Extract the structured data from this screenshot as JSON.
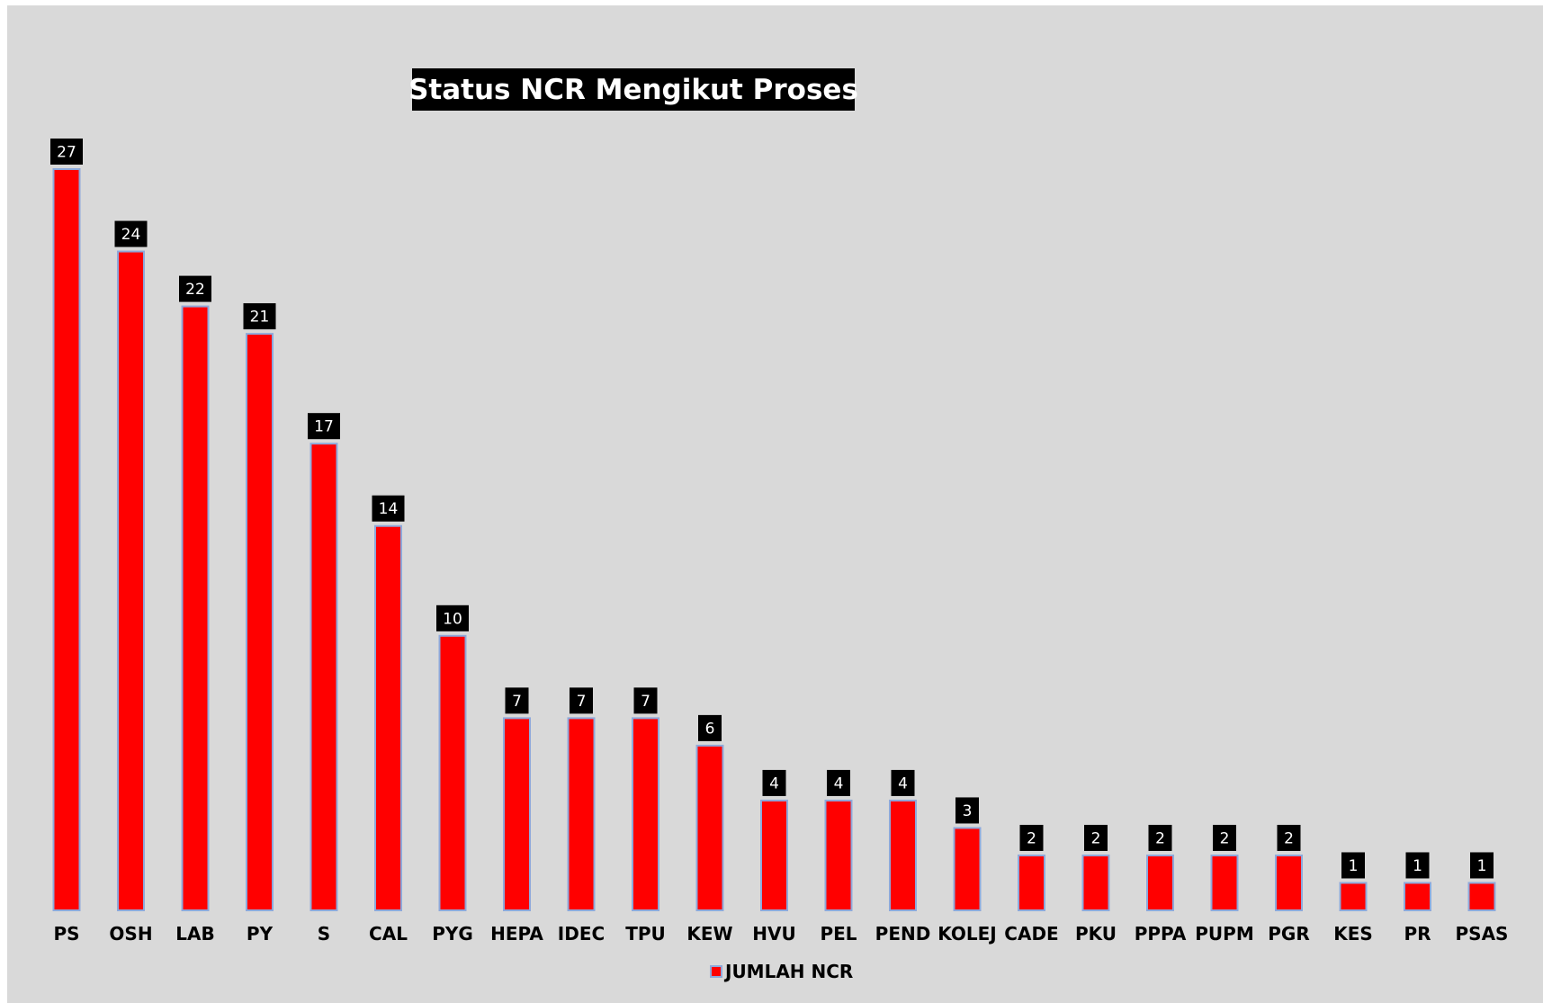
{
  "chart_data": {
    "type": "bar",
    "title": "Status NCR Mengikut Proses",
    "categories": [
      "PS",
      "OSH",
      "LAB",
      "PY",
      "S",
      "CAL",
      "PYG",
      "HEPA",
      "IDEC",
      "TPU",
      "KEW",
      "HVU",
      "PEL",
      "PEND",
      "KOLEJ",
      "CADE",
      "PKU",
      "PPPA",
      "PUPM",
      "PGR",
      "KES",
      "PR",
      "PSAS"
    ],
    "series": [
      {
        "name": "JUMLAH NCR",
        "color": "#ff0000",
        "values": [
          27,
          24,
          22,
          21,
          17,
          14,
          10,
          7,
          7,
          7,
          6,
          4,
          4,
          4,
          3,
          2,
          2,
          2,
          2,
          2,
          1,
          1,
          1
        ]
      }
    ],
    "ylim": [
      0,
      27
    ],
    "grid": false,
    "legend_position": "bottom",
    "data_labels": true
  }
}
